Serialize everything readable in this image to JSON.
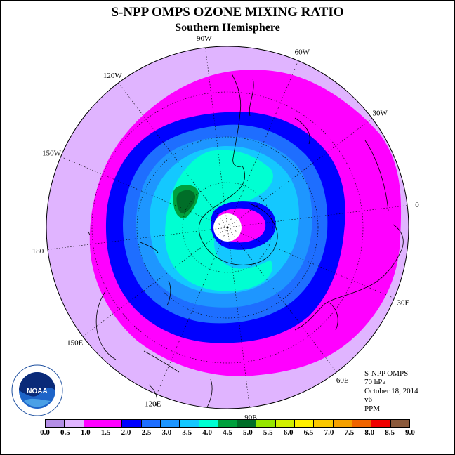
{
  "title": "S-NPP OMPS OZONE MIXING RATIO",
  "subtitle": "Southern Hemisphere",
  "longitude_labels": [
    {
      "text": "90W",
      "deg": -90
    },
    {
      "text": "60W",
      "deg": -60
    },
    {
      "text": "30W",
      "deg": -30
    },
    {
      "text": "0",
      "deg": 0
    },
    {
      "text": "30E",
      "deg": 30
    },
    {
      "text": "60E",
      "deg": 60
    },
    {
      "text": "90E",
      "deg": 90
    },
    {
      "text": "120E",
      "deg": 120
    },
    {
      "text": "150E",
      "deg": 150
    },
    {
      "text": "180",
      "deg": 180
    },
    {
      "text": "150W",
      "deg": -150
    },
    {
      "text": "120W",
      "deg": -120
    }
  ],
  "info": {
    "instrument": "S-NPP OMPS",
    "level": "70 hPa",
    "date": "October 18, 2014",
    "version": "v6",
    "units": "PPM"
  },
  "logo": {
    "text": "NOAA"
  },
  "colorbar": {
    "colors": [
      "#b48ee6",
      "#e0b4ff",
      "#ff00ff",
      "#ff00ff",
      "#0000ff",
      "#1e6eff",
      "#1e96ff",
      "#14c8ff",
      "#00ffd2",
      "#00a03c",
      "#006e28",
      "#96e600",
      "#d2f000",
      "#fff000",
      "#fac800",
      "#f5a000",
      "#f06400",
      "#f00000",
      "#8b5a3c"
    ],
    "ticks": [
      "0.0",
      "0.5",
      "1.0",
      "1.5",
      "2.0",
      "2.5",
      "3.0",
      "3.5",
      "4.0",
      "4.5",
      "5.0",
      "5.5",
      "6.0",
      "6.5",
      "7.0",
      "7.5",
      "8.0",
      "8.5",
      "9.0"
    ]
  },
  "bands": [
    {
      "color": "#e0b4ff",
      "value": "0.5-1.0"
    },
    {
      "color": "#ff00ff",
      "value": "1.0-1.5"
    },
    {
      "color": "#0000ff",
      "value": "1.5-2.0"
    },
    {
      "color": "#1e6eff",
      "value": "2.0-2.5"
    },
    {
      "color": "#1e96ff",
      "value": "2.5-3.0"
    },
    {
      "color": "#14c8ff",
      "value": "3.0-3.5"
    },
    {
      "color": "#00ffd2",
      "value": "3.5-4.0"
    },
    {
      "color": "#00a03c",
      "value": "4.0-4.5"
    }
  ]
}
